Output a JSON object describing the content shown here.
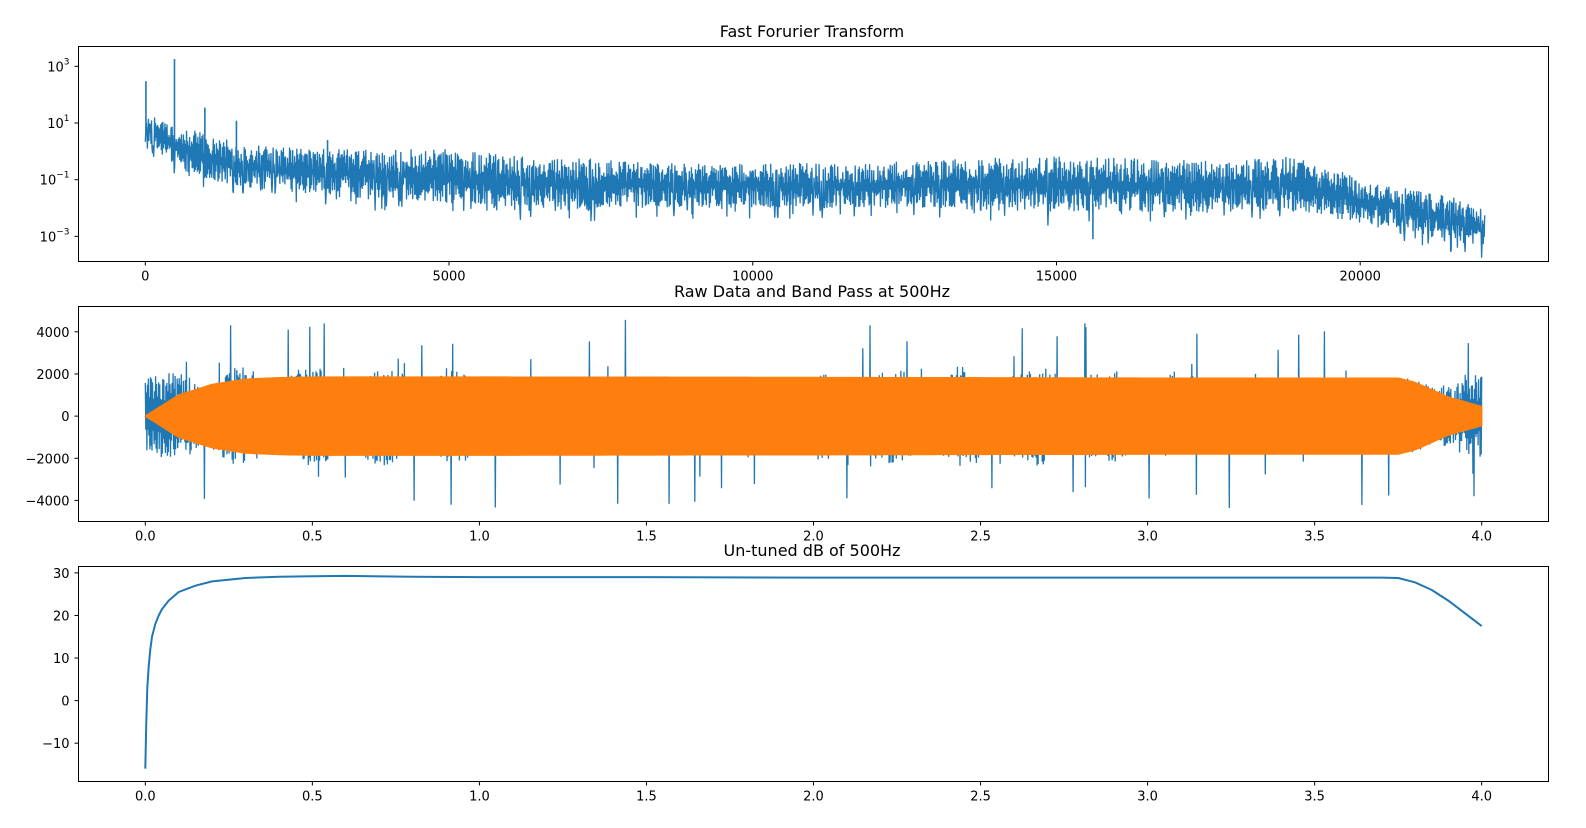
{
  "colors": {
    "series_blue": "#1f77b4",
    "series_orange": "#ff7f0e",
    "axes": "#000000",
    "background": "#ffffff"
  },
  "chart_data": [
    {
      "type": "line",
      "title": "Fast Forurier Transform",
      "xlabel": "",
      "ylabel": "",
      "yscale": "log",
      "xlim": [
        -1100,
        23100
      ],
      "ylim": [
        0.00013,
        5000
      ],
      "xticks": [
        0,
        5000,
        10000,
        15000,
        20000
      ],
      "xtick_labels": [
        "0",
        "5000",
        "10000",
        "15000",
        "20000"
      ],
      "yticks": [
        0.001,
        0.1,
        10,
        1000
      ],
      "ytick_labels": [
        {
          "base": "10",
          "exp": "−3"
        },
        {
          "base": "10",
          "exp": "−1"
        },
        {
          "base": "10",
          "exp": "1"
        },
        {
          "base": "10",
          "exp": "3"
        }
      ],
      "grid": false,
      "series": [
        {
          "color": "#1f77b4",
          "x_range": [
            0,
            22050
          ],
          "envelope_x": [
            0,
            50,
            200,
            500,
            1000,
            1500,
            2000,
            3000,
            4000,
            5000,
            6000,
            7000,
            8000,
            9000,
            10000,
            11000,
            12000,
            13000,
            14000,
            15000,
            16000,
            17000,
            18000,
            18900,
            19200,
            20000,
            21000,
            22050
          ],
          "envelope_low": [
            3,
            1.5,
            0.8,
            0.25,
            0.09,
            0.06,
            0.04,
            0.025,
            0.02,
            0.015,
            0.008,
            0.008,
            0.01,
            0.01,
            0.01,
            0.01,
            0.01,
            0.01,
            0.008,
            0.007,
            0.007,
            0.007,
            0.007,
            0.007,
            0.005,
            0.003,
            0.001,
            0.0003
          ],
          "envelope_high": [
            30,
            20,
            15,
            8,
            4,
            2,
            1.5,
            1.2,
            1.2,
            1.2,
            0.7,
            0.6,
            0.5,
            0.4,
            0.4,
            0.4,
            0.4,
            0.5,
            0.6,
            0.7,
            0.6,
            0.5,
            0.5,
            0.7,
            0.35,
            0.1,
            0.04,
            0.008
          ],
          "peaks": [
            {
              "x": 10,
              "y": 300
            },
            {
              "x": 480,
              "y": 1800
            },
            {
              "x": 980,
              "y": 35
            },
            {
              "x": 1500,
              "y": 12
            },
            {
              "x": 3000,
              "y": 2.5
            },
            {
              "x": 15600,
              "y": 0.0008
            }
          ]
        }
      ]
    },
    {
      "type": "line",
      "title": "Raw Data and Band Pass at 500Hz",
      "xlabel": "",
      "ylabel": "",
      "xlim": [
        -0.2,
        4.2
      ],
      "ylim": [
        -5000,
        5200
      ],
      "xticks": [
        0.0,
        0.5,
        1.0,
        1.5,
        2.0,
        2.5,
        3.0,
        3.5,
        4.0
      ],
      "xtick_labels": [
        "0.0",
        "0.5",
        "1.0",
        "1.5",
        "2.0",
        "2.5",
        "3.0",
        "3.5",
        "4.0"
      ],
      "yticks": [
        -4000,
        -2000,
        0,
        2000,
        4000
      ],
      "ytick_labels": [
        "−4000",
        "−2000",
        "0",
        "2000",
        "4000"
      ],
      "grid": false,
      "series": [
        {
          "color": "#1f77b4",
          "kind": "raw_signal",
          "x_range": [
            0,
            4.0
          ],
          "typical_amplitude": 2400,
          "peak_max": 4850,
          "peak_min": -4500
        },
        {
          "color": "#ff7f0e",
          "kind": "band_pass_envelope",
          "envelope_x": [
            0,
            0.05,
            0.1,
            0.2,
            0.3,
            0.4,
            0.5,
            1.0,
            2.0,
            3.0,
            3.7,
            3.75,
            3.8,
            3.9,
            4.0
          ],
          "envelope_amplitude": [
            0,
            500,
            1000,
            1500,
            1750,
            1820,
            1850,
            1850,
            1830,
            1800,
            1800,
            1800,
            1600,
            900,
            450
          ]
        }
      ]
    },
    {
      "type": "line",
      "title": "Un-tuned dB of 500Hz",
      "xlabel": "",
      "ylabel": "",
      "xlim": [
        -0.2,
        4.2
      ],
      "ylim": [
        -19,
        31.5
      ],
      "xticks": [
        0.0,
        0.5,
        1.0,
        1.5,
        2.0,
        2.5,
        3.0,
        3.5,
        4.0
      ],
      "xtick_labels": [
        "0.0",
        "0.5",
        "1.0",
        "1.5",
        "2.0",
        "2.5",
        "3.0",
        "3.5",
        "4.0"
      ],
      "yticks": [
        -10,
        0,
        10,
        20,
        30
      ],
      "ytick_labels": [
        "−10",
        "0",
        "10",
        "20",
        "30"
      ],
      "grid": false,
      "series": [
        {
          "color": "#1f77b4",
          "x": [
            0.0,
            0.003,
            0.006,
            0.01,
            0.015,
            0.02,
            0.03,
            0.04,
            0.05,
            0.07,
            0.1,
            0.15,
            0.2,
            0.3,
            0.4,
            0.5,
            0.6,
            0.8,
            1.0,
            1.5,
            2.0,
            2.5,
            3.0,
            3.5,
            3.7,
            3.75,
            3.8,
            3.85,
            3.9,
            3.95,
            4.0
          ],
          "y": [
            -16,
            -5,
            3,
            8,
            12,
            15,
            18,
            20,
            21.5,
            23.5,
            25.5,
            27,
            28,
            28.8,
            29.1,
            29.2,
            29.3,
            29.1,
            29.0,
            29.0,
            28.9,
            28.9,
            28.9,
            28.9,
            28.9,
            28.8,
            27.8,
            26.0,
            23.5,
            20.5,
            17.5
          ]
        }
      ]
    }
  ]
}
